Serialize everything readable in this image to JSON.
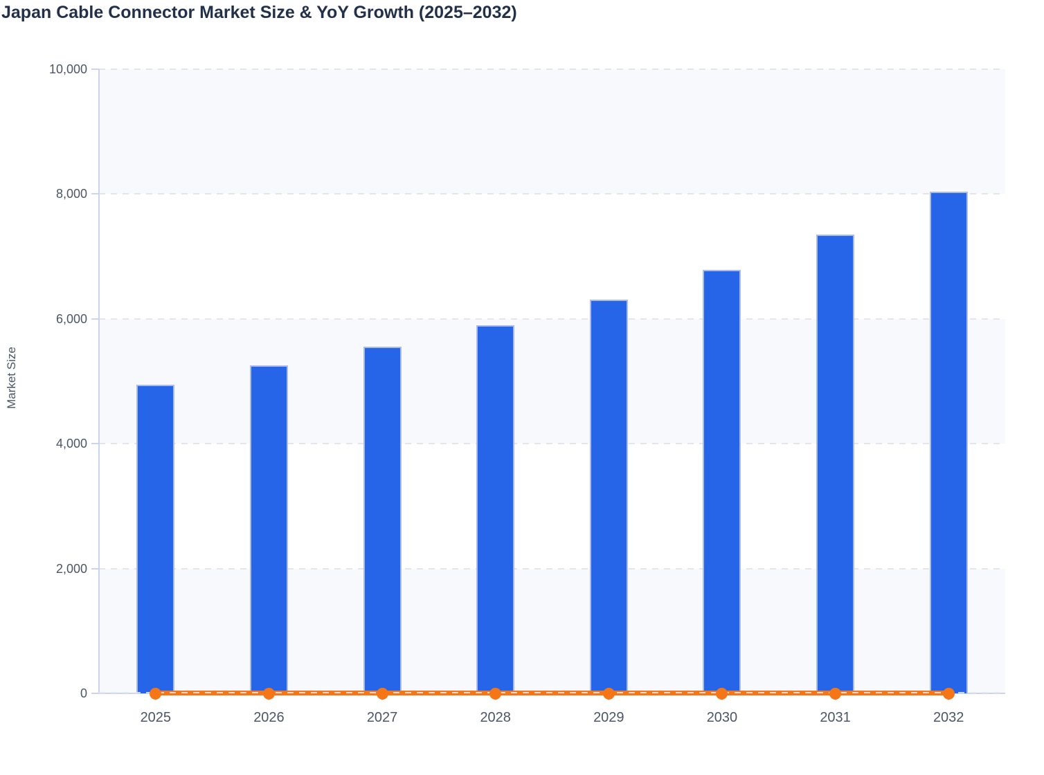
{
  "chart_data": {
    "type": "bar",
    "combo": "bar + line on shared axis",
    "title": "Japan Cable Connector Market Size & YoY Growth (2025–2032)",
    "xlabel": "",
    "ylabel": "Market Size",
    "categories": [
      "2025",
      "2026",
      "2027",
      "2028",
      "2029",
      "2030",
      "2031",
      "2032"
    ],
    "series": [
      {
        "name": "Market Size",
        "type": "bar",
        "color": "#2765e8",
        "values": [
          4950,
          5250,
          5550,
          5900,
          6310,
          6790,
          7350,
          8040
        ]
      },
      {
        "name": "YoY Growth",
        "type": "line",
        "color": "#f57616",
        "values": [
          0,
          0,
          0,
          0,
          0,
          0,
          0,
          0
        ],
        "appears_flat_at_baseline": true
      }
    ],
    "ylim": [
      0,
      10000
    ],
    "yticks": [
      {
        "value": 0,
        "label": "0"
      },
      {
        "value": 2000,
        "label": "2,000"
      },
      {
        "value": 4000,
        "label": "4,000"
      },
      {
        "value": 6000,
        "label": "6,000"
      },
      {
        "value": 8000,
        "label": "8,000"
      },
      {
        "value": 10000,
        "label": "10,000"
      }
    ],
    "grid": "horizontal-dashed",
    "legend": "none",
    "plot_bands": "alternating light fill between gridlines"
  },
  "colors": {
    "bar_fill": "#2765e8",
    "bar_border": "#a9bbf1",
    "line": "#f57616",
    "marker": "#f57616",
    "band": "#f8f9fc",
    "gridline": "#e3e5ea",
    "axis_line": "#ccd3ee",
    "tick_label": "#4b5566",
    "title": "#22304a"
  }
}
